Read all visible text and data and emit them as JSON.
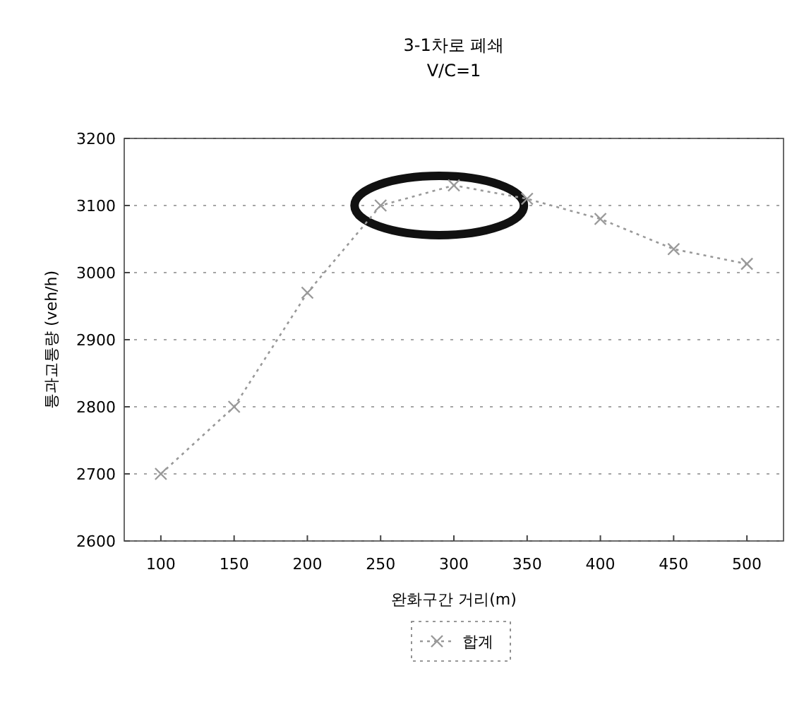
{
  "chart_data": {
    "type": "line",
    "title": "3-1차로 폐쇄",
    "subtitle": "V/C=1",
    "xlabel": "완화구간 거리(m)",
    "ylabel": "통과교통량 (veh/h)",
    "x": [
      100,
      150,
      200,
      250,
      300,
      350,
      400,
      450,
      500
    ],
    "series": [
      {
        "name": "합계",
        "color": "#999999",
        "values": [
          2700,
          2800,
          2970,
          3100,
          3130,
          3110,
          3080,
          3035,
          3013
        ]
      }
    ],
    "xlim": [
      75,
      525
    ],
    "ylim": [
      2600,
      3200
    ],
    "xticks": [
      100,
      150,
      200,
      250,
      300,
      350,
      400,
      450,
      500
    ],
    "yticks": [
      2600,
      2700,
      2800,
      2900,
      3000,
      3100,
      3200
    ],
    "grid": "y",
    "legend": "bottom",
    "marker": "cross",
    "line_style": "dotted"
  }
}
